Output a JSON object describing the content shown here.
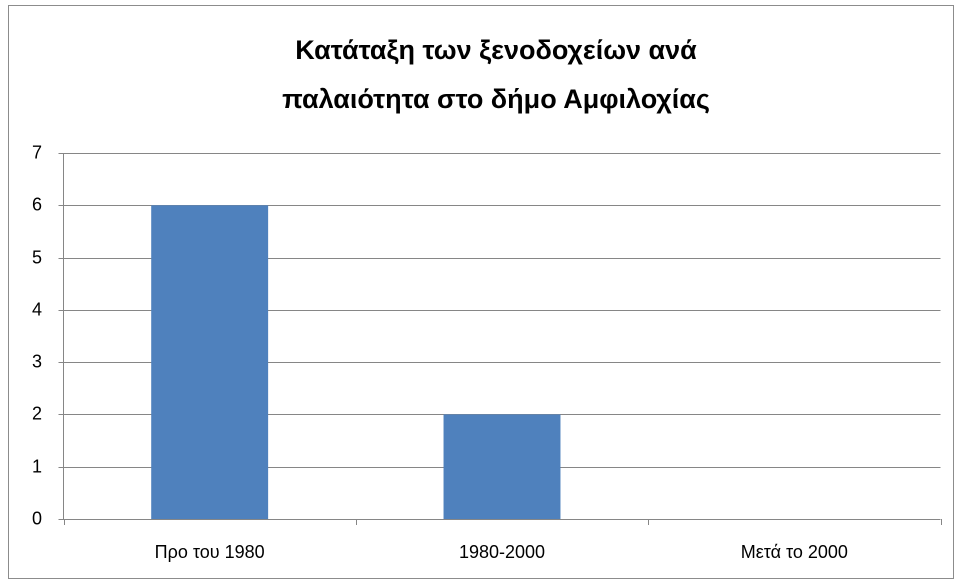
{
  "chart_data": {
    "type": "bar",
    "title": [
      "Κατάταξη των ξενοδοχείων ανά",
      "παλαιότητα στο δήμο Αμφιλοχίας"
    ],
    "categories": [
      "Προ του 1980",
      "1980-2000",
      "Μετά το 2000"
    ],
    "values": [
      6,
      2,
      0
    ],
    "color": "#4f81bd",
    "ylim": [
      0,
      7
    ],
    "yticks": [
      0,
      1,
      2,
      3,
      4,
      5,
      6,
      7
    ],
    "grid": true
  }
}
